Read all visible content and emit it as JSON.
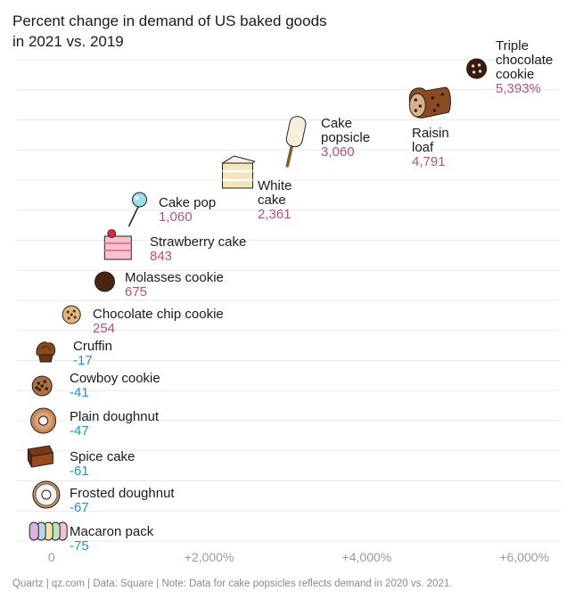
{
  "title_lines": [
    "Percent change in demand of US baked goods",
    "in 2021 vs. 2019"
  ],
  "footer": "Quartz | qz.com | Data: Square | Note: Data for cake popsicles reflects demand in 2020 vs. 2021.",
  "colors": {
    "positive": "#b5517e",
    "negative": "#2b8fc4",
    "grid": "#e9e9e9",
    "axis_text": "#9a9a9a"
  },
  "chart_data": {
    "type": "scatter",
    "title": "Percent change in demand of US baked goods in 2021 vs. 2019",
    "xlabel": "",
    "ylabel": "",
    "xlim": [
      -450,
      6450
    ],
    "x_ticks": [
      {
        "value": 0,
        "label": "0"
      },
      {
        "value": 2000,
        "label": "+2,000%"
      },
      {
        "value": 4000,
        "label": "+4,000%"
      },
      {
        "value": 6000,
        "label": "+6,000%"
      }
    ],
    "grid": "horizontal",
    "points": [
      {
        "name": [
          "Macaron pack"
        ],
        "value": -75,
        "value_label": "-75",
        "icon": "macaron-icon",
        "label_side": "right"
      },
      {
        "name": [
          "Frosted doughnut"
        ],
        "value": -67,
        "value_label": "-67",
        "icon": "frosted-doughnut-icon",
        "label_side": "right"
      },
      {
        "name": [
          "Spice cake"
        ],
        "value": -61,
        "value_label": "-61",
        "icon": "spice-cake-icon",
        "label_side": "right"
      },
      {
        "name": [
          "Plain doughnut"
        ],
        "value": -47,
        "value_label": "-47",
        "icon": "plain-doughnut-icon",
        "label_side": "right"
      },
      {
        "name": [
          "Cowboy cookie"
        ],
        "value": -41,
        "value_label": "-41",
        "icon": "cowboy-cookie-icon",
        "label_side": "right"
      },
      {
        "name": [
          "Cruffin"
        ],
        "value": -17,
        "value_label": "-17",
        "icon": "cruffin-icon",
        "label_side": "right"
      },
      {
        "name": [
          "Chocolate chip cookie"
        ],
        "value": 254,
        "value_label": "254",
        "icon": "chocolate-chip-cookie-icon",
        "label_side": "right"
      },
      {
        "name": [
          "Molasses cookie"
        ],
        "value": 675,
        "value_label": "675",
        "icon": "molasses-cookie-icon",
        "label_side": "right"
      },
      {
        "name": [
          "Strawberry cake"
        ],
        "value": 843,
        "value_label": "843",
        "icon": "strawberry-cake-icon",
        "label_side": "right"
      },
      {
        "name": [
          "Cake pop"
        ],
        "value": 1060,
        "value_label": "1,060",
        "icon": "cake-pop-icon",
        "label_side": "right"
      },
      {
        "name": [
          "White",
          "cake"
        ],
        "value": 2361,
        "value_label": "2,361",
        "icon": "white-cake-icon",
        "label_side": "below-right"
      },
      {
        "name": [
          "Cake",
          "popsicle"
        ],
        "value": 3060,
        "value_label": "3,060",
        "icon": "cake-popsicle-icon",
        "label_side": "right"
      },
      {
        "name": [
          "Raisin",
          "loaf"
        ],
        "value": 4791,
        "value_label": "4,791",
        "icon": "raisin-loaf-icon",
        "label_side": "below"
      },
      {
        "name": [
          "Triple",
          "chocolate",
          "cookie"
        ],
        "value": 5393,
        "value_label": "5,393%",
        "icon": "triple-chocolate-cookie-icon",
        "label_side": "right"
      }
    ]
  }
}
